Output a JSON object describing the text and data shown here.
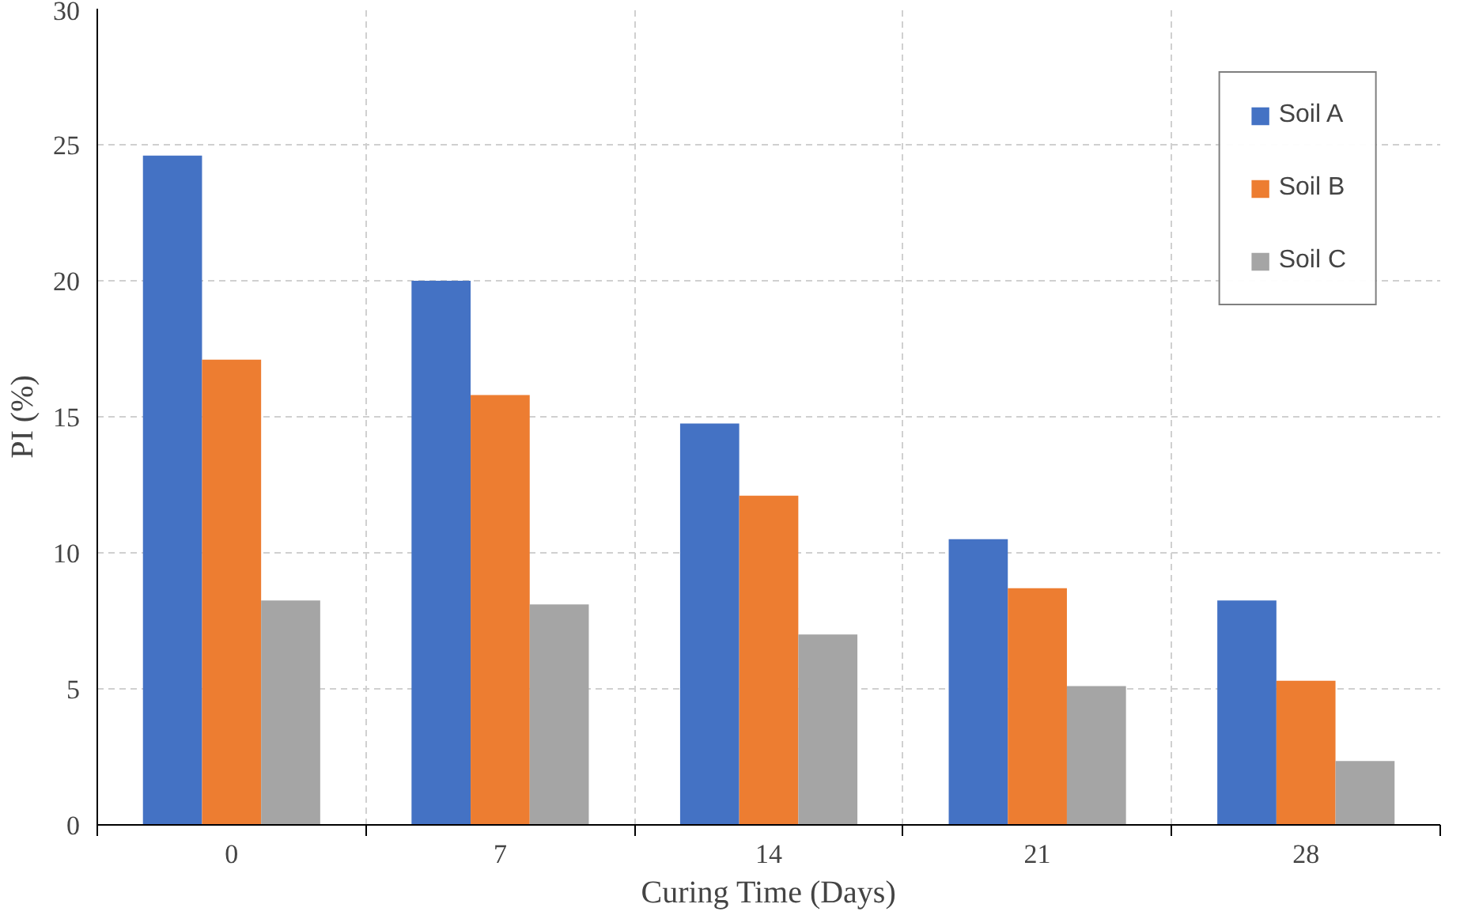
{
  "chart_data": {
    "type": "bar",
    "xlabel": "Curing Time (Days)",
    "ylabel": "PI (%)",
    "categories": [
      "0",
      "7",
      "14",
      "21",
      "28"
    ],
    "series": [
      {
        "name": "Soil A",
        "color": "#4472c4",
        "values": [
          24.6,
          20.0,
          14.75,
          10.5,
          8.25
        ]
      },
      {
        "name": "Soil B",
        "color": "#ed7d31",
        "values": [
          17.1,
          15.8,
          12.1,
          8.7,
          5.3
        ]
      },
      {
        "name": "Soil C",
        "color": "#a5a5a5",
        "values": [
          8.25,
          8.1,
          7.0,
          5.1,
          2.35
        ]
      }
    ],
    "ylim": [
      0,
      30
    ],
    "yticks": [
      0,
      5,
      10,
      15,
      20,
      25,
      30
    ],
    "grid": true,
    "legend": "top right"
  }
}
